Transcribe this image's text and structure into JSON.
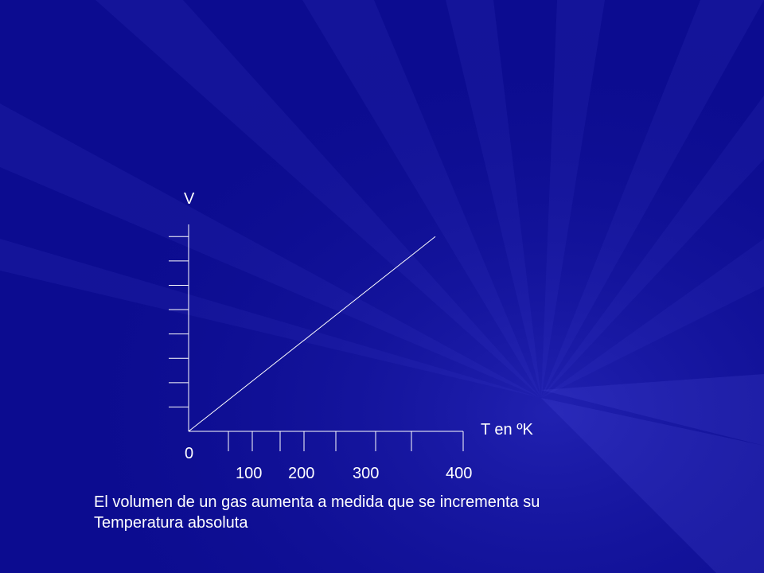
{
  "colors": {
    "background": "#0e0e96",
    "foreground": "#ffffff"
  },
  "chart_data": {
    "type": "line",
    "title": "",
    "xlabel": "T en ºK",
    "ylabel": "V",
    "origin_label": "0",
    "x_tick_labels": [
      "100",
      "200",
      "300",
      "400"
    ],
    "x_ticks": [
      50,
      80,
      115,
      145,
      185,
      235,
      280,
      345
    ],
    "y_ticks": [
      1,
      2,
      3,
      4,
      5,
      6,
      7,
      8
    ],
    "xlim": [
      0,
      345
    ],
    "ylim": [
      0,
      8.5
    ],
    "grid": false,
    "series": [
      {
        "x": [
          0,
          310
        ],
        "y": [
          0,
          8.0
        ]
      }
    ]
  },
  "caption": {
    "line1": "El volumen de un gas aumenta a medida que se incrementa su",
    "line2": "Temperatura absoluta"
  }
}
